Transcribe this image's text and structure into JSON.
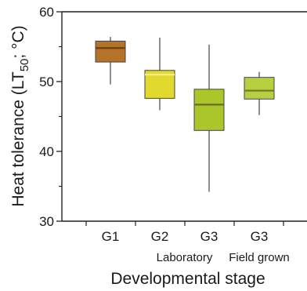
{
  "chart_data": {
    "type": "box",
    "ylabel_main": "Heat tolerance (LT",
    "ylabel_sub": "50",
    "ylabel_tail": "; °C)",
    "xlabel": "Developmental stage",
    "ylim": [
      30,
      60
    ],
    "y_major_ticks": [
      30,
      40,
      50,
      60
    ],
    "y_minor_ticks": [
      35,
      45,
      55
    ],
    "y_tick_labels": [
      "30",
      "40",
      "50",
      "60"
    ],
    "grid": false,
    "categories": [
      "G1",
      "G2",
      "G3",
      "G3"
    ],
    "group_labels": [
      {
        "text": "Laboratory",
        "under": [
          1,
          2
        ]
      },
      {
        "text": "Field grown",
        "under": [
          3,
          3
        ]
      }
    ],
    "boxes": [
      {
        "category": "G1",
        "min": 49.6,
        "q1": 52.8,
        "median": 54.8,
        "q3": 55.8,
        "max": 56.4,
        "color": "#b5732a",
        "median_color": "#6b3f10"
      },
      {
        "category": "G2",
        "min": 45.9,
        "q1": 47.6,
        "median": 51.0,
        "q3": 51.6,
        "max": 56.3,
        "color": "#e2d92e",
        "median_color": "#f3ec84"
      },
      {
        "category": "G3",
        "min": 34.2,
        "q1": 43.0,
        "median": 46.7,
        "q3": 48.9,
        "max": 55.3,
        "color": "#aac62b",
        "median_color": "#6e6a1e"
      },
      {
        "category": "G3",
        "min": 45.2,
        "q1": 47.5,
        "median": 48.7,
        "q3": 50.6,
        "max": 51.4,
        "color": "#b6d13f",
        "median_color": "#7d7324"
      }
    ]
  }
}
